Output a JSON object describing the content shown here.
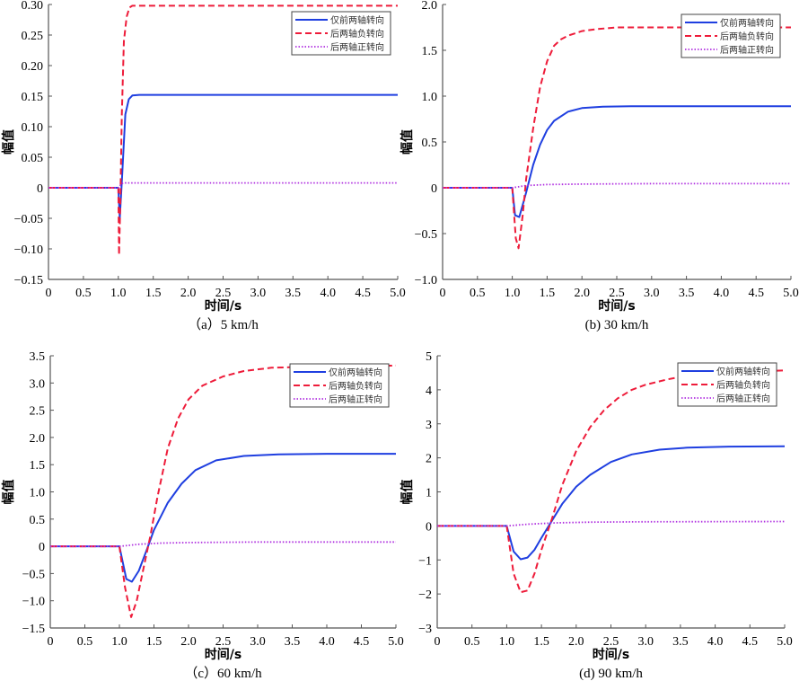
{
  "chart_data": [
    {
      "type": "line",
      "caption": "（a）5 km/h",
      "xlabel": "时间/s",
      "ylabel": "幅值",
      "xlim": [
        0,
        5.0
      ],
      "ylim": [
        -0.15,
        0.3
      ],
      "xticks": [
        "0",
        "0.5",
        "1.0",
        "1.5",
        "2.0",
        "2.5",
        "3.0",
        "3.5",
        "4.0",
        "4.5",
        "5.0"
      ],
      "yticks": [
        "-0.15",
        "-0.10",
        "-0.05",
        "0",
        "0.05",
        "0.10",
        "0.15",
        "0.20",
        "0.25",
        "0.30"
      ],
      "ytick_values": [
        -0.15,
        -0.1,
        -0.05,
        0,
        0.05,
        0.1,
        0.15,
        0.2,
        0.25,
        0.3
      ],
      "legend": "top-right",
      "series": [
        {
          "name": "仅前两轴转向",
          "style": "solid",
          "color": "#1f3fe0",
          "x": [
            0,
            1.0,
            1.02,
            1.05,
            1.1,
            1.15,
            1.2,
            1.3,
            5.0
          ],
          "y": [
            0,
            0,
            -0.05,
            0.01,
            0.12,
            0.145,
            0.151,
            0.152,
            0.152
          ]
        },
        {
          "name": "后两轴负转向",
          "style": "dashed",
          "color": "#ee1c3a",
          "x": [
            0,
            1.0,
            1.01,
            1.03,
            1.05,
            1.08,
            1.12,
            1.16,
            1.2,
            1.25,
            5.0
          ],
          "y": [
            0,
            0,
            -0.11,
            -0.02,
            0.12,
            0.24,
            0.28,
            0.295,
            0.298,
            0.298,
            0.298
          ]
        },
        {
          "name": "后两轴正转向",
          "style": "dotted",
          "color": "#b030e0",
          "x": [
            0,
            1.0,
            1.05,
            1.1,
            5.0
          ],
          "y": [
            0,
            0,
            0.007,
            0.008,
            0.008
          ]
        }
      ]
    },
    {
      "type": "line",
      "caption": "(b) 30 km/h",
      "xlabel": "时间/s",
      "ylabel": "幅值",
      "xlim": [
        0,
        5.0
      ],
      "ylim": [
        -1.0,
        2.0
      ],
      "xticks": [
        "0",
        "0.5",
        "1.0",
        "1.5",
        "2.0",
        "2.5",
        "3.0",
        "3.5",
        "4.0",
        "4.5",
        "5.0"
      ],
      "yticks": [
        "-1.0",
        "-0.5",
        "0",
        "0.5",
        "1.0",
        "1.5",
        "2.0"
      ],
      "ytick_values": [
        -1.0,
        -0.5,
        0,
        0.5,
        1.0,
        1.5,
        2.0
      ],
      "legend": "top-right",
      "series": [
        {
          "name": "仅前两轴转向",
          "style": "solid",
          "color": "#1f3fe0",
          "x": [
            0,
            1.0,
            1.04,
            1.1,
            1.2,
            1.3,
            1.4,
            1.5,
            1.6,
            1.8,
            2.0,
            2.3,
            2.7,
            5.0
          ],
          "y": [
            0,
            0,
            -0.3,
            -0.32,
            -0.05,
            0.25,
            0.47,
            0.63,
            0.73,
            0.83,
            0.87,
            0.885,
            0.89,
            0.89
          ]
        },
        {
          "name": "后两轴负转向",
          "style": "dashed",
          "color": "#ee1c3a",
          "x": [
            0,
            1.0,
            1.05,
            1.09,
            1.15,
            1.2,
            1.3,
            1.4,
            1.5,
            1.6,
            1.7,
            1.8,
            2.0,
            2.2,
            2.5,
            5.0
          ],
          "y": [
            0,
            0,
            -0.55,
            -0.66,
            -0.3,
            0.1,
            0.65,
            1.1,
            1.38,
            1.55,
            1.62,
            1.66,
            1.71,
            1.73,
            1.75,
            1.75
          ]
        },
        {
          "name": "后两轴正转向",
          "style": "dotted",
          "color": "#b030e0",
          "x": [
            0,
            1.0,
            1.2,
            1.5,
            2.0,
            3.0,
            5.0
          ],
          "y": [
            0,
            0,
            0.025,
            0.035,
            0.04,
            0.045,
            0.045
          ]
        }
      ]
    },
    {
      "type": "line",
      "caption": "（c）60 km/h",
      "xlabel": "时间/s",
      "ylabel": "幅值",
      "xlim": [
        0,
        5.0
      ],
      "ylim": [
        -1.5,
        3.5
      ],
      "xticks": [
        "0",
        "0.5",
        "1.0",
        "1.5",
        "2.0",
        "2.5",
        "3.0",
        "3.5",
        "4.0",
        "4.5",
        "5.0"
      ],
      "yticks": [
        "-1.5",
        "-1.0",
        "-0.5",
        "0",
        "0.5",
        "1.0",
        "1.5",
        "2.0",
        "2.5",
        "3.0",
        "3.5"
      ],
      "ytick_values": [
        -1.5,
        -1.0,
        -0.5,
        0,
        0.5,
        1.0,
        1.5,
        2.0,
        2.5,
        3.0,
        3.5
      ],
      "legend": "top-right",
      "series": [
        {
          "name": "仅前两轴转向",
          "style": "solid",
          "color": "#1f3fe0",
          "x": [
            0,
            1.0,
            1.1,
            1.18,
            1.28,
            1.4,
            1.5,
            1.7,
            1.9,
            2.1,
            2.4,
            2.8,
            3.3,
            4.0,
            5.0
          ],
          "y": [
            0,
            0,
            -0.6,
            -0.65,
            -0.45,
            -0.05,
            0.3,
            0.8,
            1.15,
            1.4,
            1.58,
            1.66,
            1.69,
            1.7,
            1.7
          ]
        },
        {
          "name": "后两轴负转向",
          "style": "dashed",
          "color": "#ee1c3a",
          "x": [
            0,
            1.0,
            1.08,
            1.17,
            1.25,
            1.35,
            1.45,
            1.55,
            1.7,
            1.85,
            2.0,
            2.2,
            2.5,
            2.8,
            3.2,
            3.8,
            5.0
          ],
          "y": [
            0,
            0,
            -0.75,
            -1.3,
            -1.0,
            -0.4,
            0.2,
            0.9,
            1.8,
            2.35,
            2.7,
            2.95,
            3.12,
            3.22,
            3.28,
            3.3,
            3.32
          ]
        },
        {
          "name": "后两轴正转向",
          "style": "dotted",
          "color": "#b030e0",
          "x": [
            0,
            1.0,
            1.3,
            1.6,
            2.0,
            3.0,
            5.0
          ],
          "y": [
            0,
            0,
            0.04,
            0.06,
            0.07,
            0.08,
            0.08
          ]
        }
      ]
    },
    {
      "type": "line",
      "caption": "(d) 90 km/h",
      "xlabel": "时间/s",
      "ylabel": "幅值",
      "xlim": [
        0,
        5.0
      ],
      "ylim": [
        -3,
        5
      ],
      "xticks": [
        "0",
        "0.5",
        "1.0",
        "1.5",
        "2.0",
        "2.5",
        "3.0",
        "3.5",
        "4.0",
        "4.5",
        "5.0"
      ],
      "yticks": [
        "-3",
        "-2",
        "-1",
        "0",
        "1",
        "2",
        "3",
        "4",
        "5"
      ],
      "ytick_values": [
        -3,
        -2,
        -1,
        0,
        1,
        2,
        3,
        4,
        5
      ],
      "legend": "top-right",
      "series": [
        {
          "name": "仅前两轴转向",
          "style": "solid",
          "color": "#1f3fe0",
          "x": [
            0,
            1.0,
            1.1,
            1.2,
            1.3,
            1.4,
            1.5,
            1.65,
            1.8,
            2.0,
            2.2,
            2.5,
            2.8,
            3.2,
            3.6,
            4.2,
            5.0
          ],
          "y": [
            0,
            0,
            -0.75,
            -0.98,
            -0.93,
            -0.7,
            -0.35,
            0.15,
            0.65,
            1.15,
            1.5,
            1.88,
            2.1,
            2.24,
            2.3,
            2.33,
            2.34
          ]
        },
        {
          "name": "后两轴负转向",
          "style": "dashed",
          "color": "#ee1c3a",
          "x": [
            0,
            1.0,
            1.1,
            1.2,
            1.3,
            1.4,
            1.5,
            1.65,
            1.8,
            2.0,
            2.2,
            2.4,
            2.6,
            2.8,
            3.0,
            3.3,
            3.6,
            4.0,
            5.0
          ],
          "y": [
            0,
            0,
            -1.4,
            -1.95,
            -1.9,
            -1.4,
            -0.7,
            0.2,
            1.2,
            2.2,
            2.9,
            3.4,
            3.75,
            4.0,
            4.15,
            4.3,
            4.42,
            4.5,
            4.57
          ]
        },
        {
          "name": "后两轴正转向",
          "style": "dotted",
          "color": "#b030e0",
          "x": [
            0,
            1.0,
            1.3,
            1.7,
            2.2,
            3.0,
            5.0
          ],
          "y": [
            0,
            0,
            0.05,
            0.09,
            0.11,
            0.12,
            0.13
          ]
        }
      ]
    }
  ]
}
